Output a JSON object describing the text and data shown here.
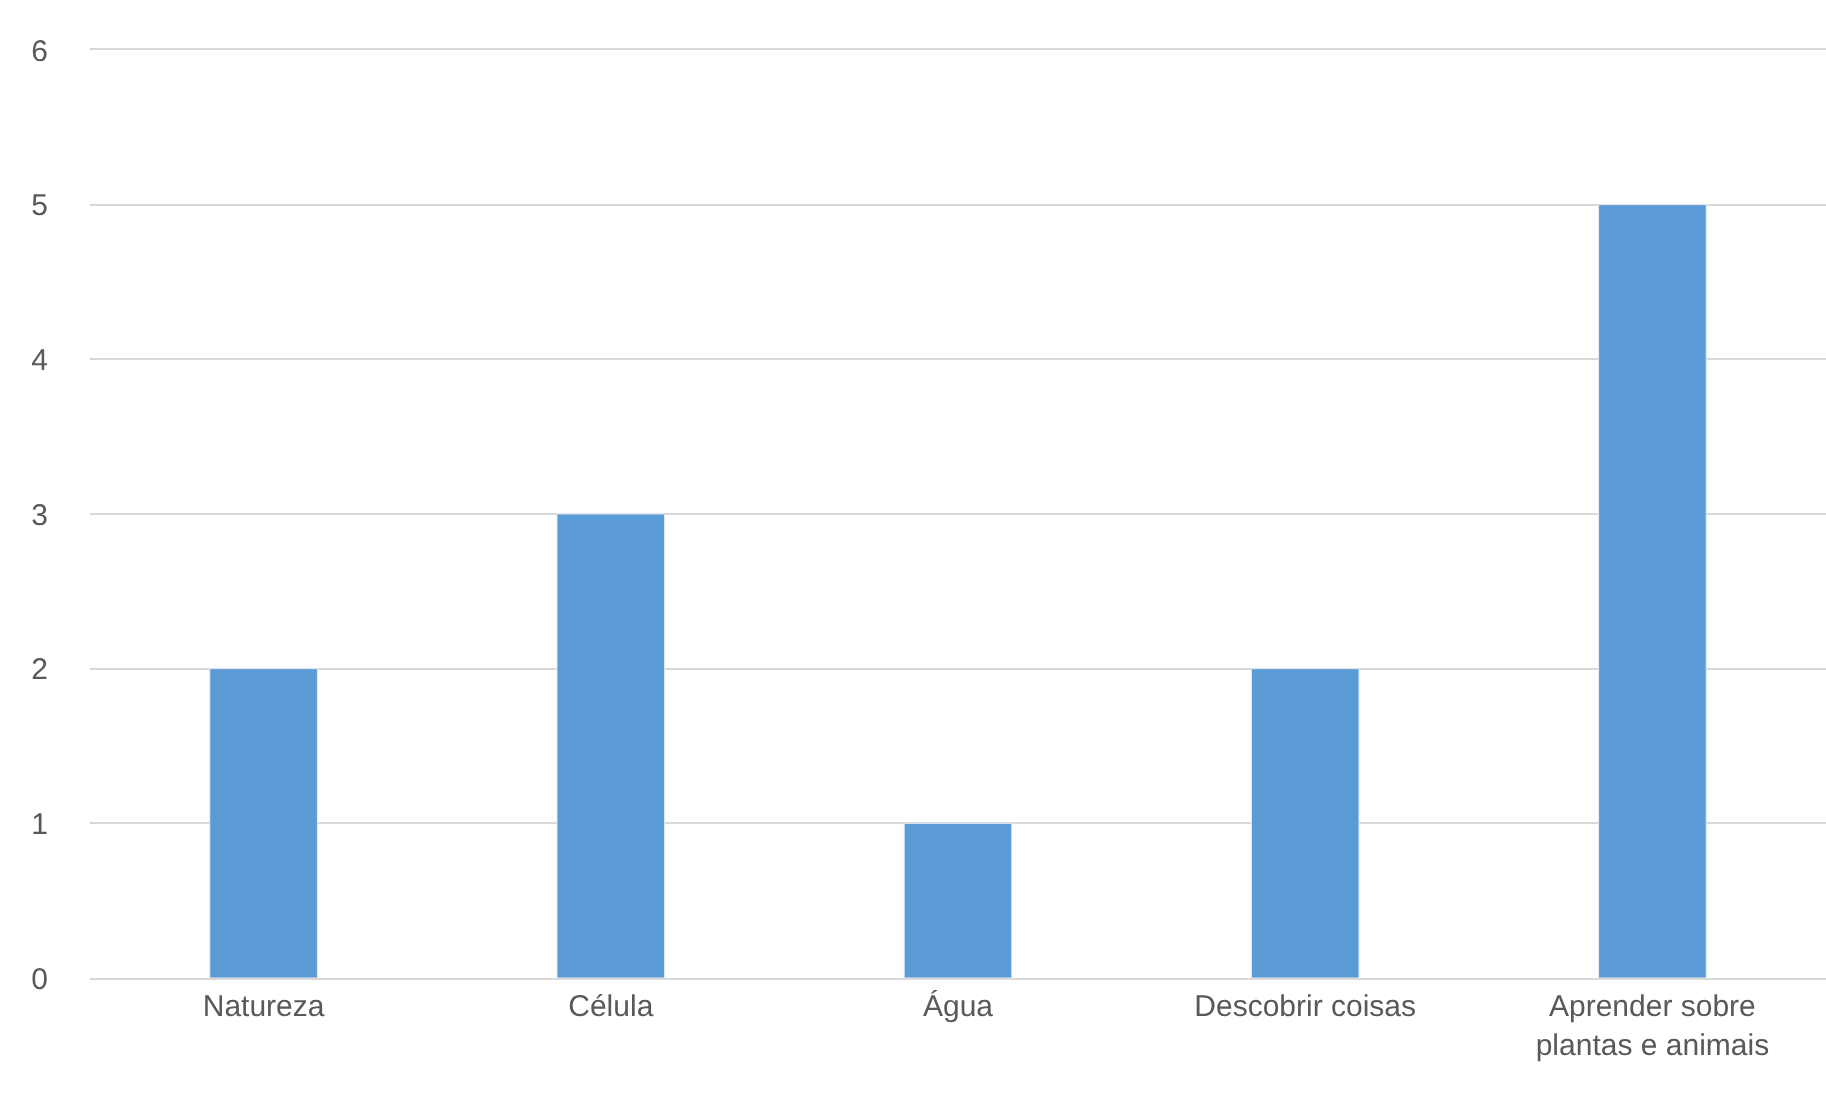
{
  "chart_data": {
    "type": "bar",
    "categories": [
      "Natureza",
      "Célula",
      "Água",
      "Descobrir coisas",
      "Aprender sobre plantas e animais"
    ],
    "values": [
      2,
      3,
      1,
      2,
      5
    ],
    "color": "#5b9bd5",
    "ylim": [
      0,
      6
    ],
    "yticks": [
      0,
      1,
      2,
      3,
      4,
      5,
      6
    ],
    "grid": "y"
  }
}
